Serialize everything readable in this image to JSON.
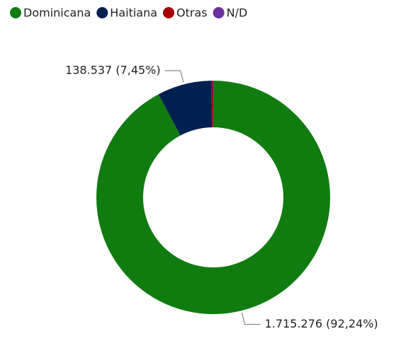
{
  "chart_data": {
    "type": "donut",
    "categories": [
      "Dominicana",
      "Haitiana",
      "Otras",
      "N/D"
    ],
    "values": [
      1715276,
      138537,
      4700,
      1000
    ],
    "value_labels": [
      "1.715.276 (92,24%)",
      "138.537 (7,45%)",
      null,
      null
    ],
    "colors": [
      "#107c10",
      "#002050",
      "#a80000",
      "#6b2fa0"
    ],
    "legend": "top-left"
  }
}
